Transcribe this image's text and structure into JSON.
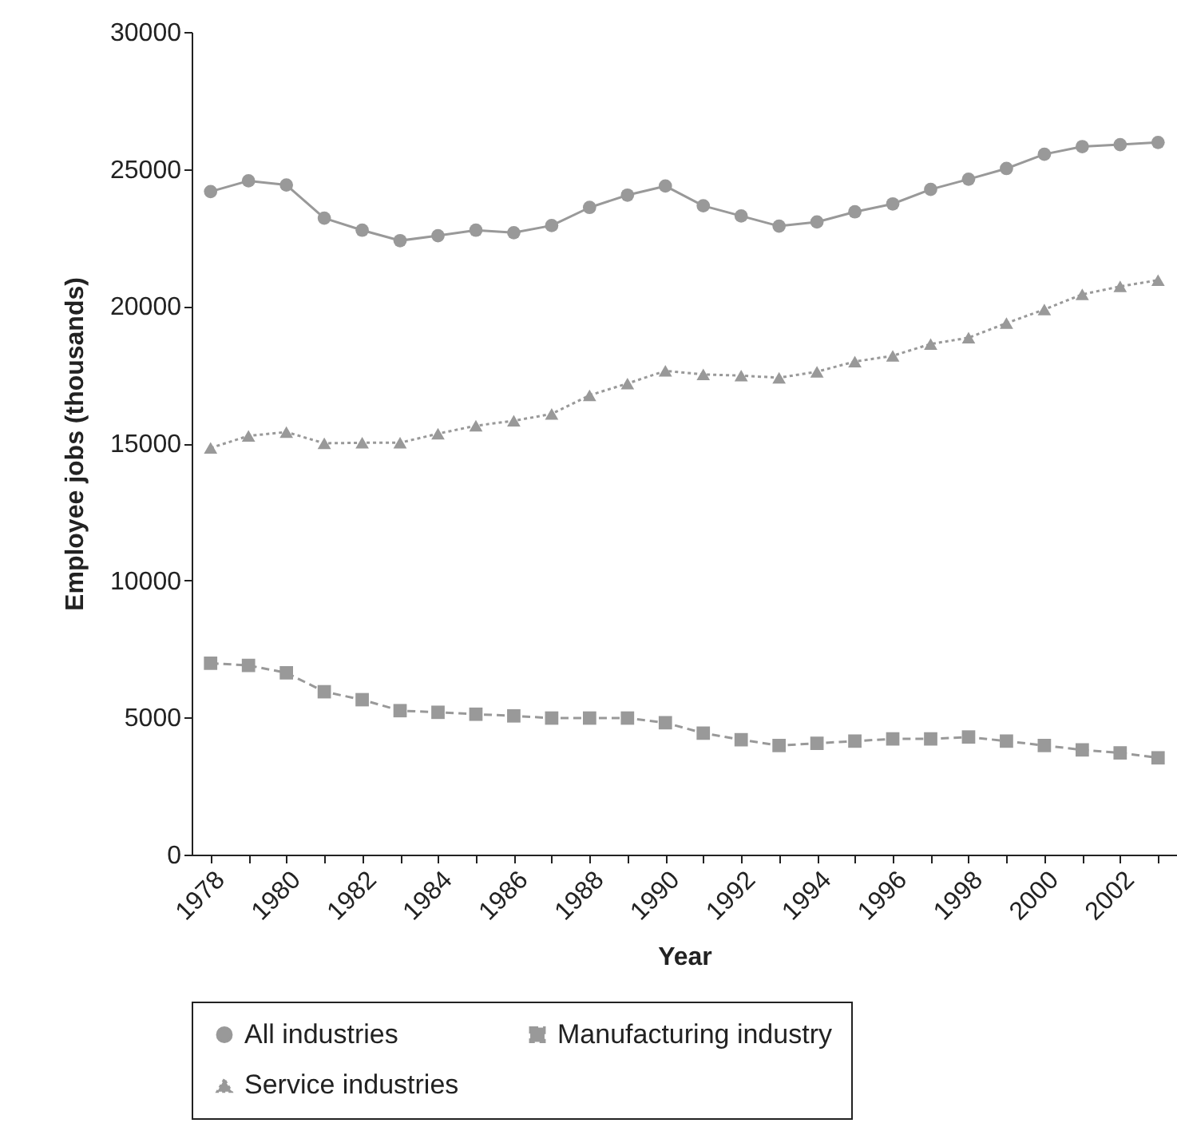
{
  "chart_data": {
    "type": "line",
    "xlabel": "Year",
    "ylabel": "Employee jobs (thousands)",
    "categories": [
      "1978",
      null,
      "1980",
      null,
      "1982",
      null,
      "1984",
      null,
      "1986",
      null,
      "1988",
      null,
      "1990",
      null,
      "1992",
      null,
      "1994",
      null,
      "1996",
      null,
      "1998",
      null,
      "2000",
      null,
      "2002",
      null
    ],
    "ylim": [
      0,
      30000
    ],
    "yticks": [
      0,
      5000,
      10000,
      15000,
      20000,
      25000,
      30000
    ],
    "grid": false,
    "legend": "bottom",
    "series": [
      {
        "name": "All industries",
        "color": "#999999",
        "marker": "circle",
        "line_style": "solid",
        "values": [
          24180,
          24570,
          24420,
          23210,
          22770,
          22390,
          22570,
          22770,
          22680,
          22940,
          23600,
          24050,
          24380,
          23660,
          23290,
          22920,
          23070,
          23440,
          23730,
          24260,
          24630,
          25020,
          25540,
          25820,
          25890,
          25970
        ]
      },
      {
        "name": "Manufacturing industry",
        "color": "#999999",
        "marker": "square",
        "line_style": "dashed",
        "values": [
          6980,
          6900,
          6630,
          5940,
          5650,
          5250,
          5190,
          5120,
          5060,
          4980,
          4980,
          4980,
          4810,
          4430,
          4190,
          3980,
          4060,
          4140,
          4220,
          4220,
          4290,
          4140,
          3980,
          3820,
          3710,
          3530
        ]
      },
      {
        "name": "Service industries",
        "color": "#999999",
        "marker": "triangle",
        "line_style": "dotted",
        "values": [
          14830,
          15270,
          15410,
          15000,
          15020,
          15020,
          15350,
          15640,
          15820,
          16070,
          16750,
          17180,
          17640,
          17510,
          17470,
          17390,
          17610,
          17980,
          18190,
          18620,
          18850,
          19380,
          19880,
          20430,
          20720,
          20950
        ]
      }
    ]
  }
}
